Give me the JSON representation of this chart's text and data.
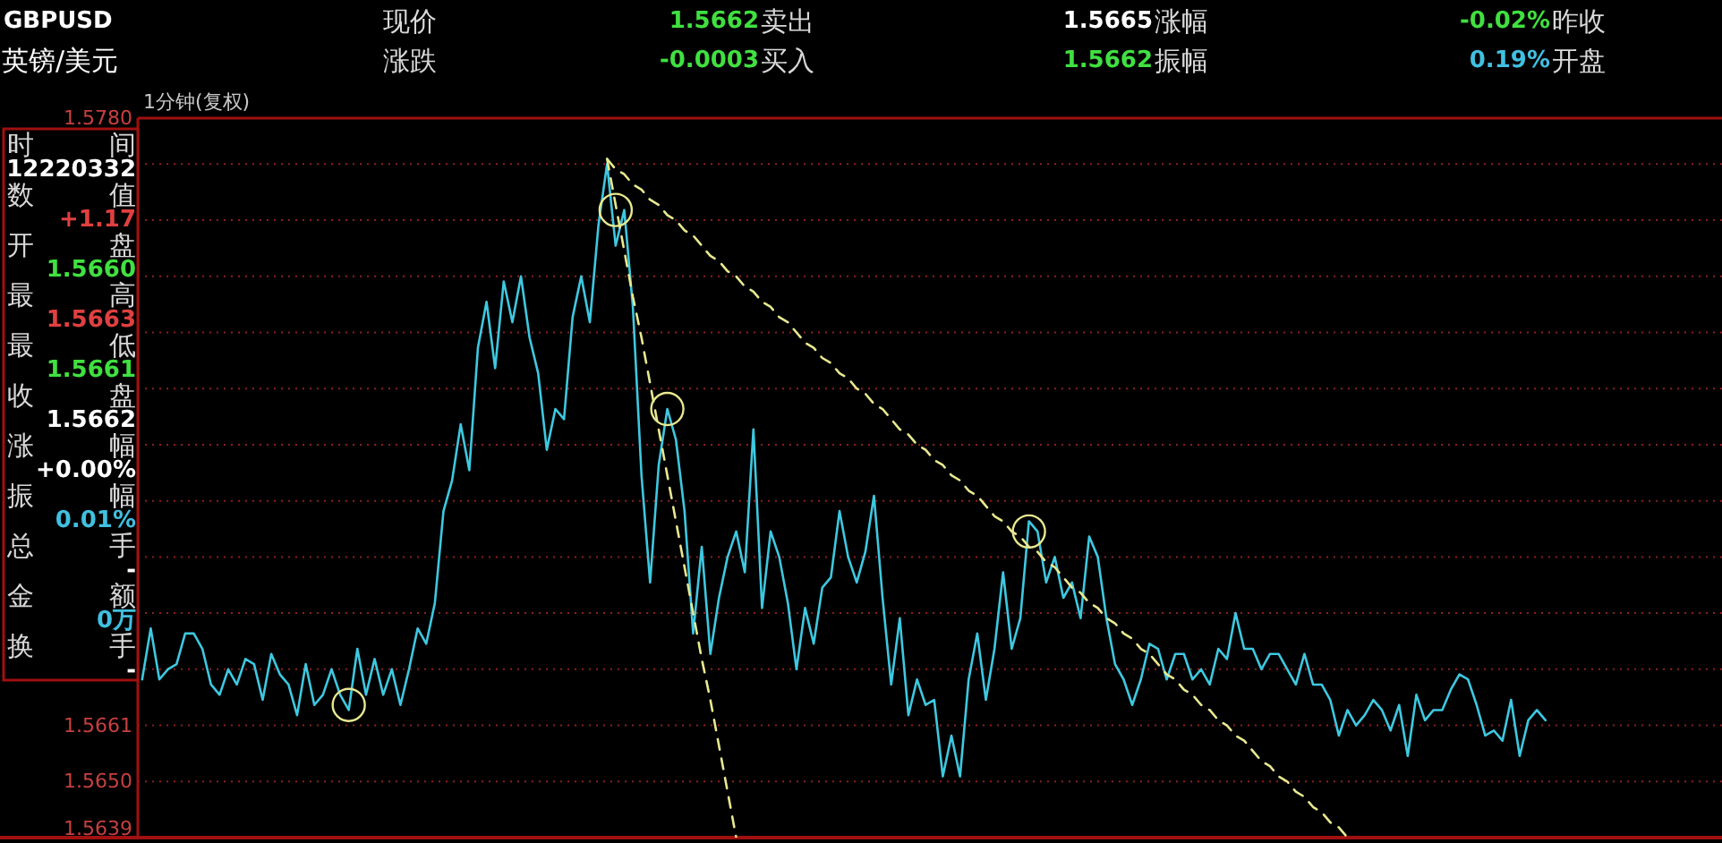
{
  "chart_data": {
    "type": "line",
    "ylim": [
      1.5639,
      1.578
    ],
    "categories": [
      null,
      null,
      null,
      null,
      null,
      null,
      null,
      null,
      null,
      null,
      null,
      null,
      null,
      null,
      null,
      null,
      null,
      null,
      null,
      null,
      null,
      null,
      null,
      null,
      null,
      null,
      null,
      null,
      null,
      null,
      null,
      null,
      null,
      null,
      null,
      null,
      null,
      null,
      null,
      null,
      null,
      null,
      null,
      null,
      null,
      null,
      null,
      null,
      null,
      null,
      null,
      null,
      null,
      null,
      null,
      null,
      null,
      null,
      null,
      null,
      null,
      null,
      null,
      null,
      null,
      null,
      null,
      null,
      null,
      null,
      null,
      null,
      null,
      null,
      null,
      null,
      null,
      null,
      null,
      null,
      null,
      null,
      null,
      null,
      null,
      null,
      null,
      null,
      null,
      null,
      null,
      null,
      null,
      null,
      null,
      null,
      null,
      null,
      null,
      null,
      null,
      null,
      null,
      null,
      null,
      null,
      null,
      null,
      null,
      null,
      null,
      null,
      null,
      null,
      null,
      null,
      null,
      null,
      null,
      null,
      null,
      null,
      null,
      null,
      null,
      null,
      null,
      null,
      null,
      null,
      null,
      null,
      null,
      null,
      null,
      null,
      null,
      null,
      null,
      null,
      null,
      null,
      null,
      null,
      null,
      null,
      null,
      null,
      null,
      null,
      null,
      null,
      null,
      null,
      null,
      null,
      null,
      null,
      null,
      null,
      null,
      null,
      null,
      null,
      null,
      null,
      null,
      null,
      null,
      null,
      null,
      null,
      null,
      null,
      null,
      null,
      null,
      null,
      null,
      null,
      null,
      null,
      null,
      null
    ],
    "yticks": [
      {
        "value": 1.5639,
        "label": "1.5639"
      },
      {
        "value": 1.565,
        "label": "1.5650"
      },
      1.5661,
      {
        "value": 1.5672,
        "label": null
      },
      {
        "value": 1.5683,
        "label": null
      },
      {
        "value": 1.5694,
        "label": null
      },
      {
        "value": 1.5705,
        "label": null
      },
      {
        "value": 1.5716,
        "label": null
      },
      {
        "value": 1.5727,
        "label": null
      },
      {
        "value": 1.5738,
        "label": null
      },
      {
        "value": 1.5749,
        "label": null
      },
      {
        "value": 1.576,
        "label": null
      },
      {
        "value": 1.5771,
        "label": null
      },
      {
        "value": 1.578,
        "label": "1.5780"
      }
    ],
    "tick_labels": "y",
    "grid": "y",
    "annotations": [
      "GBPUSD",
      "现价",
      "1.5662",
      "卖出",
      "1.5665",
      "涨幅",
      "-0.02%",
      "昨收",
      "英镑/美元",
      "涨跌",
      "-0.0003",
      "买入",
      "1.5662",
      "振幅",
      "0.19%",
      "开盘",
      "1分钟(复权)",
      "时",
      "间",
      "12220332",
      "数",
      "值",
      "+1.17",
      "开",
      "盘",
      "1.5660",
      "最",
      "高",
      "1.5663",
      "最",
      "低",
      "1.5661",
      "收",
      "盘",
      "1.5662",
      "涨",
      "幅",
      "+0.00%",
      "振",
      "幅",
      "0.01%",
      "总",
      "手",
      "-",
      "金",
      "额",
      "0万",
      "换",
      "手",
      "-"
    ],
    "series": [
      {
        "type": "line",
        "color": "#3ec8e0",
        "values": [
          1.567,
          1.568,
          1.567,
          1.5672,
          1.5673,
          1.5679,
          1.5679,
          1.5676,
          1.5669,
          1.5667,
          1.5672,
          1.5669,
          1.5674,
          1.5673,
          1.5666,
          1.5675,
          1.5671,
          1.5669,
          1.5663,
          1.5673,
          1.5665,
          1.5667,
          1.5672,
          1.5667,
          1.5664,
          1.5676,
          1.5667,
          1.5674,
          1.5667,
          1.5672,
          1.5665,
          1.5672,
          1.568,
          1.5677,
          1.5685,
          1.5703,
          1.5709,
          1.572,
          1.5711,
          1.5735,
          1.5744,
          1.5731,
          1.5748,
          1.574,
          1.5749,
          1.5737,
          1.573,
          1.5715,
          1.5723,
          1.5721,
          1.5741,
          1.5749,
          1.574,
          1.5759,
          1.5771,
          1.5755,
          1.5762,
          1.5743,
          1.571,
          1.5689,
          1.5712,
          1.5723,
          1.5717,
          1.5703,
          1.5679,
          1.5696,
          1.5675,
          1.5686,
          1.5694,
          1.5699,
          1.5691,
          1.5719,
          1.5684,
          1.5699,
          1.5694,
          1.5685,
          1.5672,
          1.5684,
          1.5677,
          1.5688,
          1.569,
          1.5703,
          1.5694,
          1.5689,
          1.5695,
          1.5706,
          1.5686,
          1.5669,
          1.5682,
          1.5663,
          1.567,
          1.5665,
          1.5666,
          1.5651,
          1.5659,
          1.5651,
          1.567,
          1.5679,
          1.5666,
          1.5676,
          1.5691,
          1.5676,
          1.5682,
          1.5701,
          1.5699,
          1.5689,
          1.5694,
          1.5686,
          1.5689,
          1.5682,
          1.5698,
          1.5694,
          1.5682,
          1.5673,
          1.567,
          1.5665,
          1.567,
          1.5677,
          1.5676,
          1.567,
          1.5675,
          1.5675,
          1.567,
          1.5672,
          1.5669,
          1.5676,
          1.5674,
          1.5683,
          1.5676,
          1.5676,
          1.5672,
          1.5675,
          1.5675,
          1.5672,
          1.5669,
          1.5675,
          1.5669,
          1.5669,
          1.5666,
          1.5659,
          1.5664,
          1.5661,
          1.5663,
          1.5666,
          1.5664,
          1.566,
          1.5665,
          1.5655,
          1.5667,
          1.5662,
          1.5664,
          1.5664,
          1.5668,
          1.5671,
          1.567,
          1.5665,
          1.5659,
          1.566,
          1.5658,
          1.5666,
          1.5655,
          1.5662,
          1.5664,
          1.5662,
          null,
          null,
          null,
          null,
          null,
          null,
          null,
          null,
          null,
          null,
          null,
          null,
          null,
          null,
          null,
          null,
          null,
          null,
          null,
          null
        ]
      },
      {
        "type": "line",
        "color": "#e8e890",
        "line_style": "dashed",
        "values": [
          null,
          null,
          null,
          null,
          null,
          null,
          null,
          null,
          null,
          null,
          null,
          null,
          null,
          null,
          null,
          null,
          null,
          null,
          null,
          null,
          null,
          null,
          null,
          null,
          null,
          null,
          null,
          null,
          null,
          null,
          null,
          null,
          null,
          null,
          null,
          null,
          null,
          null,
          null,
          null,
          null,
          null,
          null,
          null,
          null,
          null,
          null,
          null,
          null,
          null,
          null,
          null,
          null,
          null,
          1.5772,
          1.5763,
          1.5754,
          1.5745,
          1.5737,
          1.5728,
          1.5719,
          1.571,
          1.5701,
          1.5692,
          1.5683,
          1.5674,
          1.5666,
          1.5657,
          1.5648,
          1.5639,
          null,
          null,
          null,
          null,
          null,
          null,
          null,
          null,
          null,
          null,
          null,
          null,
          null,
          null,
          null,
          null,
          null,
          null,
          null,
          null,
          null,
          null,
          null,
          null,
          null,
          null,
          null,
          null,
          null,
          null,
          null,
          null,
          null,
          null,
          null,
          null,
          null,
          null,
          null,
          null,
          null,
          null,
          null,
          null,
          null,
          null,
          null,
          null,
          null,
          null,
          null,
          null,
          null,
          null,
          null,
          null,
          null,
          null,
          null,
          null,
          null,
          null,
          null,
          null,
          null,
          null,
          null,
          null,
          null,
          null,
          null,
          null,
          null,
          null,
          null,
          null,
          null,
          null,
          null,
          null,
          null,
          null,
          null,
          null,
          null,
          null,
          null,
          null,
          null,
          null,
          null,
          null,
          null,
          null,
          null,
          null,
          null,
          null,
          null,
          null,
          null,
          null,
          null,
          null,
          null,
          null,
          null,
          null,
          null,
          null,
          null,
          null,
          null,
          null
        ]
      },
      {
        "type": "line",
        "color": "#e8e890",
        "line_style": "dashed",
        "values": [
          null,
          null,
          null,
          null,
          null,
          null,
          null,
          null,
          null,
          null,
          null,
          null,
          null,
          null,
          null,
          null,
          null,
          null,
          null,
          null,
          null,
          null,
          null,
          null,
          null,
          null,
          null,
          null,
          null,
          null,
          null,
          null,
          null,
          null,
          null,
          null,
          null,
          null,
          null,
          null,
          null,
          null,
          null,
          null,
          null,
          null,
          null,
          null,
          null,
          null,
          null,
          null,
          null,
          null,
          1.5772,
          1.577,
          1.5769,
          1.5767,
          1.5766,
          1.5764,
          1.5763,
          1.5761,
          1.576,
          1.5758,
          1.5757,
          1.5755,
          1.5753,
          1.5752,
          1.575,
          1.5749,
          1.5747,
          1.5746,
          1.5744,
          1.5743,
          1.5741,
          1.574,
          1.5738,
          1.5736,
          1.5735,
          1.5733,
          1.5732,
          1.573,
          1.5729,
          1.5727,
          1.5726,
          1.5724,
          1.5723,
          1.5721,
          1.5719,
          1.5718,
          1.5716,
          1.5715,
          1.5713,
          1.5712,
          1.571,
          1.5709,
          1.5707,
          1.5706,
          1.5704,
          1.5702,
          1.5701,
          1.5699,
          1.5698,
          1.5696,
          1.5695,
          1.5693,
          1.5692,
          1.569,
          1.5688,
          1.5687,
          1.5685,
          1.5684,
          1.5682,
          1.5681,
          1.5679,
          1.5678,
          1.5676,
          1.5675,
          1.5673,
          1.5671,
          1.567,
          1.5668,
          1.5667,
          1.5665,
          1.5664,
          1.5662,
          1.5661,
          1.5659,
          1.5658,
          1.5656,
          1.5654,
          1.5653,
          1.5651,
          1.565,
          1.5648,
          1.5647,
          1.5645,
          1.5644,
          1.5642,
          1.5641,
          1.5639,
          null,
          null,
          null,
          null,
          null,
          null,
          null,
          null,
          null,
          null,
          null,
          null,
          null,
          null,
          null,
          null,
          null,
          null,
          null,
          null,
          null,
          null,
          null,
          null,
          null,
          null,
          null,
          null,
          null,
          null,
          null,
          null,
          null,
          null,
          null,
          null,
          null,
          null,
          null,
          null,
          null,
          null,
          null
        ]
      },
      {
        "type": "scatter",
        "color": "#e8e890",
        "marker": "circle",
        "values": [
          null,
          null,
          null,
          null,
          null,
          null,
          null,
          null,
          null,
          null,
          null,
          null,
          null,
          null,
          null,
          null,
          null,
          null,
          null,
          null,
          null,
          null,
          null,
          null,
          1.5665,
          null,
          null,
          null,
          null,
          null,
          null,
          null,
          null,
          null,
          null,
          null,
          null,
          null,
          null,
          null,
          null,
          null,
          null,
          null,
          null,
          null,
          null,
          null,
          null,
          null,
          null,
          null,
          null,
          null,
          null,
          1.5762,
          null,
          null,
          null,
          null,
          null,
          1.5723,
          null,
          null,
          null,
          null,
          null,
          null,
          null,
          null,
          null,
          null,
          null,
          null,
          null,
          null,
          null,
          null,
          null,
          null,
          null,
          null,
          null,
          null,
          null,
          null,
          null,
          null,
          null,
          null,
          null,
          null,
          null,
          null,
          null,
          null,
          null,
          null,
          null,
          null,
          null,
          null,
          null,
          1.5699,
          null,
          null,
          null,
          null,
          null,
          null,
          null,
          null,
          null,
          null,
          null,
          null,
          null,
          null,
          null,
          null,
          null,
          null,
          null,
          null,
          null,
          null,
          null,
          null,
          null,
          null,
          null,
          null,
          null,
          null,
          null,
          null,
          null,
          null,
          null,
          null,
          null,
          null,
          null,
          null,
          null,
          null,
          null,
          null,
          null,
          null,
          null,
          null,
          null,
          null,
          null,
          null,
          null,
          null,
          null,
          null,
          null,
          null,
          null,
          null,
          null,
          null,
          null,
          null,
          null,
          null,
          null,
          null,
          null,
          null,
          null,
          null,
          null,
          null,
          null,
          null,
          null,
          null,
          null,
          null
        ]
      }
    ]
  }
}
